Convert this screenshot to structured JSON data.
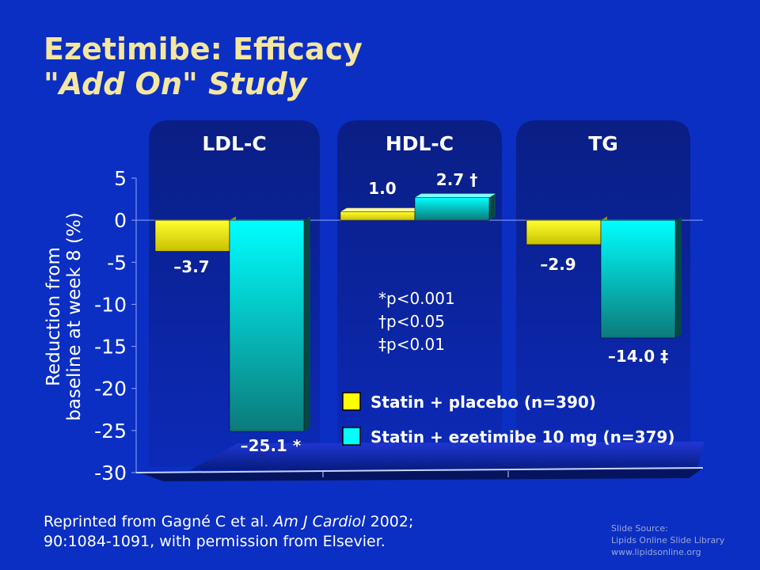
{
  "slide": {
    "title": "Ezetimibe:  Efficacy",
    "subtitle": "\"Add On\" Study"
  },
  "chart_data": {
    "type": "bar",
    "categories": [
      "LDL-C",
      "HDL-C",
      "TG"
    ],
    "series": [
      {
        "name": "Statin + placebo (n=390)",
        "values": [
          -3.7,
          1.0,
          -2.9
        ],
        "labels": [
          "–3.7",
          "1.0",
          "–2.9"
        ],
        "color": "#ffff00"
      },
      {
        "name": "Statin + ezetimibe 10 mg (n=379)",
        "values": [
          -25.1,
          2.7,
          -14.0
        ],
        "labels": [
          "–25.1 *",
          "2.7 †",
          "–14.0 ‡"
        ],
        "color": "#00ffff"
      }
    ],
    "ylabel": "Reduction from baseline at week 8 (%)",
    "ylabel_lines": [
      "Reduction from",
      "baseline at week 8 (%)"
    ],
    "ylim": [
      -30,
      5
    ],
    "yticks": [
      5,
      0,
      -5,
      -10,
      -15,
      -20,
      -25,
      -30
    ],
    "ytick_labels": [
      "5",
      "0",
      "-5",
      "-10",
      "-15",
      "-20",
      "-25",
      "-30"
    ],
    "annotations": [
      "*p<0.001",
      "†p<0.05",
      "‡p<0.01"
    ],
    "legend_position": "bottom-right",
    "grid": false
  },
  "footer": {
    "prefix": "Reprinted from Gagné C et al. ",
    "journal": "Am J Cardiol",
    "suffix": " 2002;",
    "line2": "90:1084-1091, with permission from Elsevier."
  },
  "source": {
    "line1": "Slide Source:",
    "line2": "Lipids Online Slide Library",
    "line3": "www.lipidsonline.org"
  }
}
